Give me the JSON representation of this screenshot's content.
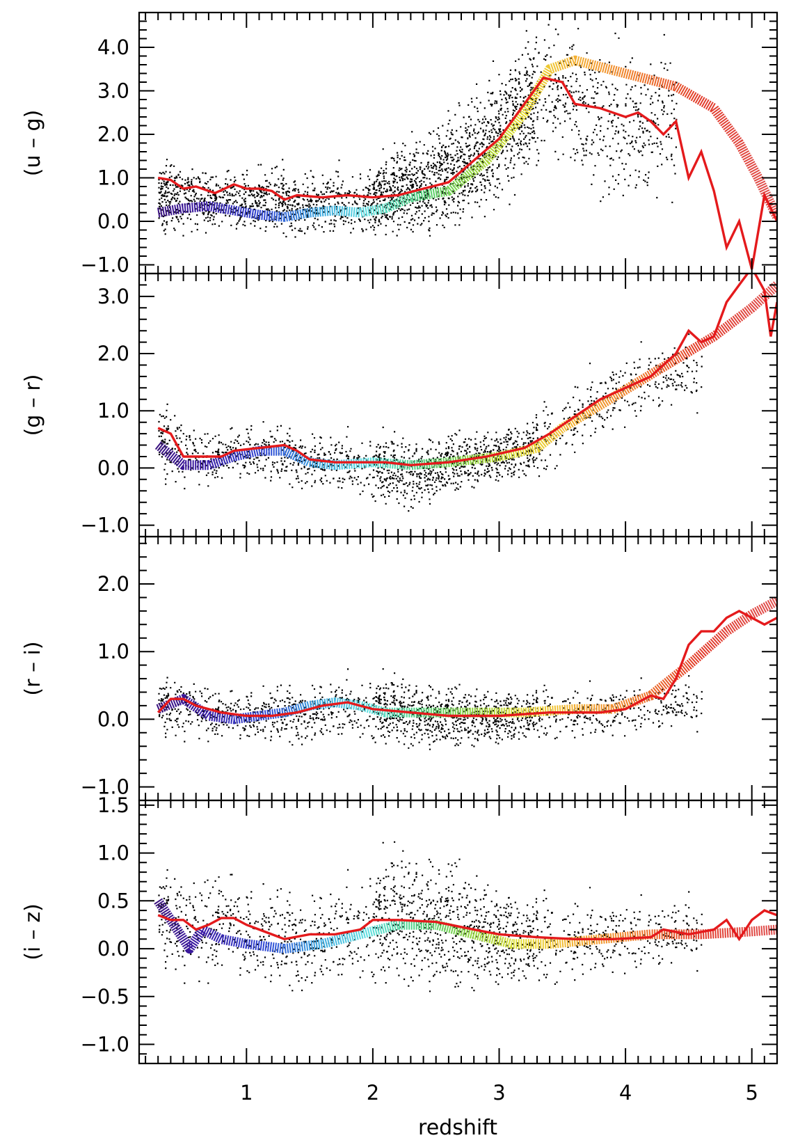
{
  "chart_data": {
    "type": "scatter",
    "xlabel": "redshift",
    "xlim": [
      0.15,
      5.2
    ],
    "xticks": [
      1,
      2,
      3,
      4,
      5
    ],
    "xtick_labels": [
      "1",
      "2",
      "3",
      "4",
      "5"
    ],
    "description": "Quasar colors vs redshift; black points = individual quasars, red line = median observed color, rainbow band = model color track",
    "panels": [
      {
        "ylabel": "(u – g)",
        "ylim": [
          -1.2,
          4.8
        ],
        "yticks": [
          -1.0,
          0.0,
          1.0,
          2.0,
          3.0,
          4.0
        ],
        "ytick_labels": [
          "−1.0",
          "0.0",
          "1.0",
          "2.0",
          "3.0",
          "4.0"
        ],
        "scatter_density": [
          [
            0.3,
            0.6,
            0.7
          ],
          [
            0.6,
            0.55,
            0.6
          ],
          [
            1.0,
            0.5,
            0.6
          ],
          [
            1.5,
            0.45,
            0.6
          ],
          [
            2.0,
            0.5,
            0.6
          ],
          [
            2.3,
            0.85,
            0.9
          ],
          [
            2.6,
            1.1,
            1.0
          ],
          [
            2.9,
            1.7,
            1.2
          ],
          [
            3.2,
            2.6,
            1.3
          ],
          [
            3.4,
            3.2,
            1.2
          ],
          [
            3.6,
            2.7,
            1.4
          ],
          [
            4.0,
            2.2,
            1.4
          ]
        ],
        "median_line": [
          [
            0.3,
            1.0
          ],
          [
            0.4,
            0.95
          ],
          [
            0.5,
            0.75
          ],
          [
            0.6,
            0.8
          ],
          [
            0.75,
            0.65
          ],
          [
            0.9,
            0.85
          ],
          [
            1.0,
            0.75
          ],
          [
            1.1,
            0.75
          ],
          [
            1.2,
            0.7
          ],
          [
            1.3,
            0.5
          ],
          [
            1.4,
            0.6
          ],
          [
            1.6,
            0.55
          ],
          [
            1.8,
            0.6
          ],
          [
            2.0,
            0.55
          ],
          [
            2.2,
            0.6
          ],
          [
            2.4,
            0.75
          ],
          [
            2.6,
            0.9
          ],
          [
            2.8,
            1.4
          ],
          [
            3.0,
            1.9
          ],
          [
            3.2,
            2.7
          ],
          [
            3.35,
            3.3
          ],
          [
            3.5,
            3.2
          ],
          [
            3.6,
            2.7
          ],
          [
            3.8,
            2.6
          ],
          [
            4.0,
            2.4
          ],
          [
            4.1,
            2.5
          ],
          [
            4.2,
            2.3
          ],
          [
            4.3,
            2.0
          ],
          [
            4.4,
            2.3
          ],
          [
            4.5,
            1.0
          ],
          [
            4.6,
            1.6
          ],
          [
            4.7,
            0.7
          ],
          [
            4.8,
            -0.6
          ],
          [
            4.9,
            0.0
          ],
          [
            5.0,
            -1.1
          ],
          [
            5.1,
            0.6
          ],
          [
            5.2,
            0.0
          ]
        ],
        "model_track": [
          [
            0.3,
            0.2
          ],
          [
            0.5,
            0.3
          ],
          [
            0.7,
            0.35
          ],
          [
            0.9,
            0.25
          ],
          [
            1.1,
            0.15
          ],
          [
            1.3,
            0.1
          ],
          [
            1.5,
            0.2
          ],
          [
            1.7,
            0.25
          ],
          [
            1.9,
            0.2
          ],
          [
            2.1,
            0.3
          ],
          [
            2.3,
            0.55
          ],
          [
            2.6,
            0.7
          ],
          [
            2.9,
            1.4
          ],
          [
            3.2,
            2.5
          ],
          [
            3.4,
            3.5
          ],
          [
            3.6,
            3.7
          ],
          [
            4.0,
            3.4
          ],
          [
            4.4,
            3.1
          ],
          [
            4.7,
            2.6
          ],
          [
            4.9,
            1.8
          ],
          [
            5.05,
            1.0
          ],
          [
            5.2,
            0.1
          ]
        ]
      },
      {
        "ylabel": "(g – r)",
        "ylim": [
          -1.2,
          3.4
        ],
        "yticks": [
          -1.0,
          0.0,
          1.0,
          2.0,
          3.0
        ],
        "ytick_labels": [
          "−1.0",
          "0.0",
          "1.0",
          "2.0",
          "3.0"
        ],
        "scatter_density": [
          [
            0.3,
            0.5,
            0.6
          ],
          [
            0.6,
            0.2,
            0.4
          ],
          [
            1.0,
            0.3,
            0.4
          ],
          [
            1.4,
            0.2,
            0.4
          ],
          [
            1.8,
            0.1,
            0.4
          ],
          [
            2.3,
            -0.1,
            0.5
          ],
          [
            2.6,
            0.1,
            0.4
          ],
          [
            3.0,
            0.25,
            0.4
          ],
          [
            3.3,
            0.4,
            0.5
          ],
          [
            3.6,
            0.9,
            0.5
          ],
          [
            3.9,
            1.3,
            0.5
          ],
          [
            4.2,
            1.6,
            0.5
          ]
        ],
        "median_line": [
          [
            0.3,
            0.7
          ],
          [
            0.4,
            0.6
          ],
          [
            0.5,
            0.2
          ],
          [
            0.6,
            0.2
          ],
          [
            0.8,
            0.2
          ],
          [
            0.9,
            0.3
          ],
          [
            1.1,
            0.35
          ],
          [
            1.3,
            0.4
          ],
          [
            1.4,
            0.3
          ],
          [
            1.5,
            0.15
          ],
          [
            1.7,
            0.1
          ],
          [
            1.9,
            0.1
          ],
          [
            2.1,
            0.1
          ],
          [
            2.3,
            0.05
          ],
          [
            2.6,
            0.1
          ],
          [
            2.9,
            0.2
          ],
          [
            3.2,
            0.35
          ],
          [
            3.4,
            0.6
          ],
          [
            3.6,
            0.9
          ],
          [
            3.8,
            1.2
          ],
          [
            4.0,
            1.4
          ],
          [
            4.2,
            1.6
          ],
          [
            4.4,
            2.0
          ],
          [
            4.5,
            2.4
          ],
          [
            4.6,
            2.2
          ],
          [
            4.7,
            2.3
          ],
          [
            4.8,
            2.9
          ],
          [
            4.9,
            3.2
          ],
          [
            5.0,
            3.5
          ],
          [
            5.1,
            3.1
          ],
          [
            5.15,
            2.3
          ],
          [
            5.2,
            2.9
          ]
        ],
        "model_track": [
          [
            0.3,
            0.4
          ],
          [
            0.5,
            0.05
          ],
          [
            0.7,
            0.05
          ],
          [
            0.9,
            0.2
          ],
          [
            1.1,
            0.3
          ],
          [
            1.3,
            0.3
          ],
          [
            1.5,
            0.1
          ],
          [
            1.7,
            0.05
          ],
          [
            2.0,
            0.1
          ],
          [
            2.3,
            0.05
          ],
          [
            2.6,
            0.1
          ],
          [
            3.0,
            0.2
          ],
          [
            3.3,
            0.35
          ],
          [
            3.5,
            0.7
          ],
          [
            3.8,
            1.1
          ],
          [
            4.1,
            1.5
          ],
          [
            4.4,
            1.9
          ],
          [
            4.7,
            2.3
          ],
          [
            5.0,
            2.8
          ],
          [
            5.2,
            3.2
          ]
        ]
      },
      {
        "ylabel": "(r – i)",
        "ylim": [
          -1.2,
          2.7
        ],
        "yticks": [
          -1.0,
          0.0,
          1.0,
          2.0
        ],
        "ytick_labels": [
          "−1.0",
          "0.0",
          "1.0",
          "2.0"
        ],
        "scatter_density": [
          [
            0.3,
            0.2,
            0.35
          ],
          [
            0.6,
            0.15,
            0.35
          ],
          [
            1.0,
            0.05,
            0.3
          ],
          [
            1.4,
            0.1,
            0.35
          ],
          [
            1.8,
            0.2,
            0.35
          ],
          [
            2.3,
            0.1,
            0.4
          ],
          [
            2.6,
            0.05,
            0.35
          ],
          [
            3.0,
            0.05,
            0.35
          ],
          [
            3.4,
            0.1,
            0.3
          ],
          [
            3.8,
            0.1,
            0.3
          ],
          [
            4.1,
            0.2,
            0.3
          ]
        ],
        "median_line": [
          [
            0.3,
            0.1
          ],
          [
            0.4,
            0.3
          ],
          [
            0.5,
            0.3
          ],
          [
            0.6,
            0.2
          ],
          [
            0.8,
            0.1
          ],
          [
            1.0,
            0.05
          ],
          [
            1.2,
            0.05
          ],
          [
            1.4,
            0.1
          ],
          [
            1.6,
            0.2
          ],
          [
            1.8,
            0.25
          ],
          [
            2.0,
            0.15
          ],
          [
            2.3,
            0.1
          ],
          [
            2.6,
            0.05
          ],
          [
            3.0,
            0.05
          ],
          [
            3.4,
            0.1
          ],
          [
            3.8,
            0.1
          ],
          [
            4.0,
            0.15
          ],
          [
            4.2,
            0.35
          ],
          [
            4.3,
            0.3
          ],
          [
            4.4,
            0.6
          ],
          [
            4.5,
            1.1
          ],
          [
            4.6,
            1.3
          ],
          [
            4.7,
            1.3
          ],
          [
            4.8,
            1.5
          ],
          [
            4.9,
            1.6
          ],
          [
            5.0,
            1.5
          ],
          [
            5.1,
            1.4
          ],
          [
            5.2,
            1.5
          ]
        ],
        "model_track": [
          [
            0.3,
            0.15
          ],
          [
            0.5,
            0.3
          ],
          [
            0.7,
            0.05
          ],
          [
            0.9,
            0.0
          ],
          [
            1.1,
            0.05
          ],
          [
            1.3,
            0.1
          ],
          [
            1.5,
            0.2
          ],
          [
            1.7,
            0.25
          ],
          [
            1.9,
            0.2
          ],
          [
            2.1,
            0.1
          ],
          [
            2.4,
            0.1
          ],
          [
            2.8,
            0.1
          ],
          [
            3.2,
            0.1
          ],
          [
            3.6,
            0.15
          ],
          [
            3.9,
            0.15
          ],
          [
            4.2,
            0.35
          ],
          [
            4.5,
            0.8
          ],
          [
            4.8,
            1.3
          ],
          [
            5.0,
            1.55
          ],
          [
            5.2,
            1.75
          ]
        ]
      },
      {
        "ylabel": "(i – z)",
        "ylim": [
          -1.2,
          1.55
        ],
        "yticks": [
          -1.0,
          -0.5,
          0.0,
          0.5,
          1.0,
          1.5
        ],
        "ytick_labels": [
          "−1.0",
          "−0.5",
          "0.0",
          "0.5",
          "1.0",
          "1.5"
        ],
        "scatter_density": [
          [
            0.3,
            0.35,
            0.4
          ],
          [
            0.6,
            0.2,
            0.45
          ],
          [
            0.8,
            0.35,
            0.5
          ],
          [
            1.0,
            0.15,
            0.4
          ],
          [
            1.4,
            0.1,
            0.4
          ],
          [
            1.8,
            0.2,
            0.4
          ],
          [
            2.2,
            0.35,
            0.55
          ],
          [
            2.5,
            0.3,
            0.55
          ],
          [
            2.8,
            0.2,
            0.5
          ],
          [
            3.2,
            0.1,
            0.4
          ],
          [
            3.6,
            0.1,
            0.35
          ],
          [
            4.0,
            0.15,
            0.3
          ]
        ],
        "median_line": [
          [
            0.3,
            0.35
          ],
          [
            0.4,
            0.3
          ],
          [
            0.5,
            0.3
          ],
          [
            0.6,
            0.2
          ],
          [
            0.7,
            0.25
          ],
          [
            0.8,
            0.32
          ],
          [
            0.9,
            0.32
          ],
          [
            1.0,
            0.25
          ],
          [
            1.2,
            0.15
          ],
          [
            1.3,
            0.1
          ],
          [
            1.5,
            0.15
          ],
          [
            1.7,
            0.15
          ],
          [
            1.9,
            0.2
          ],
          [
            2.0,
            0.3
          ],
          [
            2.2,
            0.3
          ],
          [
            2.5,
            0.28
          ],
          [
            2.8,
            0.2
          ],
          [
            3.0,
            0.15
          ],
          [
            3.3,
            0.12
          ],
          [
            3.6,
            0.1
          ],
          [
            3.9,
            0.1
          ],
          [
            4.2,
            0.12
          ],
          [
            4.3,
            0.2
          ],
          [
            4.5,
            0.15
          ],
          [
            4.7,
            0.2
          ],
          [
            4.8,
            0.3
          ],
          [
            4.9,
            0.1
          ],
          [
            5.0,
            0.3
          ],
          [
            5.1,
            0.4
          ],
          [
            5.2,
            0.35
          ]
        ],
        "model_track": [
          [
            0.3,
            0.5
          ],
          [
            0.45,
            0.2
          ],
          [
            0.55,
            0.0
          ],
          [
            0.65,
            0.2
          ],
          [
            0.8,
            0.1
          ],
          [
            1.0,
            0.05
          ],
          [
            1.3,
            0.0
          ],
          [
            1.6,
            0.05
          ],
          [
            1.9,
            0.15
          ],
          [
            2.2,
            0.25
          ],
          [
            2.5,
            0.25
          ],
          [
            2.8,
            0.15
          ],
          [
            3.1,
            0.05
          ],
          [
            3.4,
            0.05
          ],
          [
            3.8,
            0.1
          ],
          [
            4.2,
            0.15
          ],
          [
            4.6,
            0.15
          ],
          [
            5.0,
            0.18
          ],
          [
            5.2,
            0.2
          ]
        ]
      }
    ]
  },
  "colors": {
    "points": "#000000",
    "median_line": "#e41a1c",
    "model_track_gradient": [
      "#3b0f70",
      "#3a1aa8",
      "#2f4ad6",
      "#3aa6e0",
      "#5fe0e0",
      "#4cd07a",
      "#8fd63c",
      "#e8e033",
      "#f4b233",
      "#ef7a2a",
      "#e23a2a",
      "#e05050"
    ]
  }
}
